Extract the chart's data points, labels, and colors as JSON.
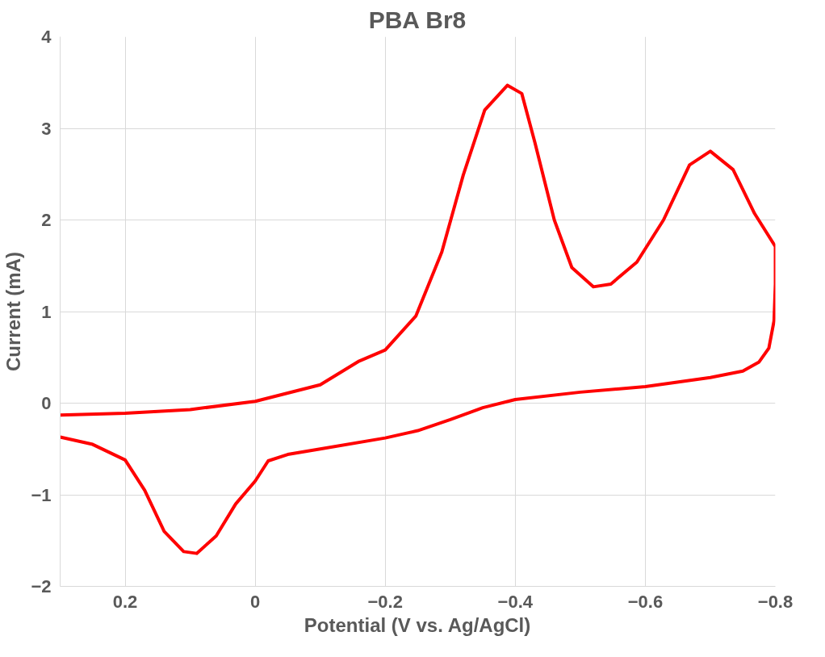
{
  "chart_data": {
    "type": "line",
    "title": "PBA Br8",
    "xlabel": "Potential (V vs. Ag/AgCl)",
    "ylabel": "Current (mA)",
    "xlim": [
      0.3,
      -0.8
    ],
    "xticks": [
      0.2,
      0,
      -0.2,
      -0.4,
      -0.6,
      -0.8
    ],
    "ylim": [
      -2,
      4
    ],
    "yticks": [
      -2,
      -1,
      0,
      1,
      2,
      3,
      4
    ],
    "grid": true,
    "series": [
      {
        "color": "#ff0000",
        "x": [
          0.3,
          0.2,
          0.1,
          0,
          -0.1,
          -0.16,
          -0.2,
          -0.247,
          -0.287,
          -0.32,
          -0.353,
          -0.388,
          -0.41,
          -0.43,
          -0.46,
          -0.487,
          -0.52,
          -0.547,
          -0.587,
          -0.628,
          -0.668,
          -0.7,
          -0.735,
          -0.768,
          -0.8,
          -0.8,
          -0.798,
          -0.79,
          -0.775,
          -0.75,
          -0.7,
          -0.6,
          -0.5,
          -0.4,
          -0.35,
          -0.3,
          -0.25,
          -0.2,
          -0.1,
          -0.05,
          -0.02,
          0,
          0.03,
          0.06,
          0.09,
          0.11,
          0.14,
          0.17,
          0.2,
          0.25,
          0.3
        ],
        "values": [
          -0.13,
          -0.11,
          -0.07,
          0.02,
          0.2,
          0.46,
          0.58,
          0.95,
          1.65,
          2.49,
          3.2,
          3.47,
          3.38,
          2.85,
          2.0,
          1.48,
          1.27,
          1.3,
          1.54,
          2.0,
          2.6,
          2.75,
          2.55,
          2.07,
          1.71,
          1.3,
          0.9,
          0.6,
          0.45,
          0.35,
          0.28,
          0.18,
          0.12,
          0.04,
          -0.05,
          -0.18,
          -0.3,
          -0.38,
          -0.5,
          -0.56,
          -0.63,
          -0.85,
          -1.1,
          -1.45,
          -1.64,
          -1.62,
          -1.4,
          -0.95,
          -0.62,
          -0.45,
          -0.37
        ]
      }
    ]
  }
}
